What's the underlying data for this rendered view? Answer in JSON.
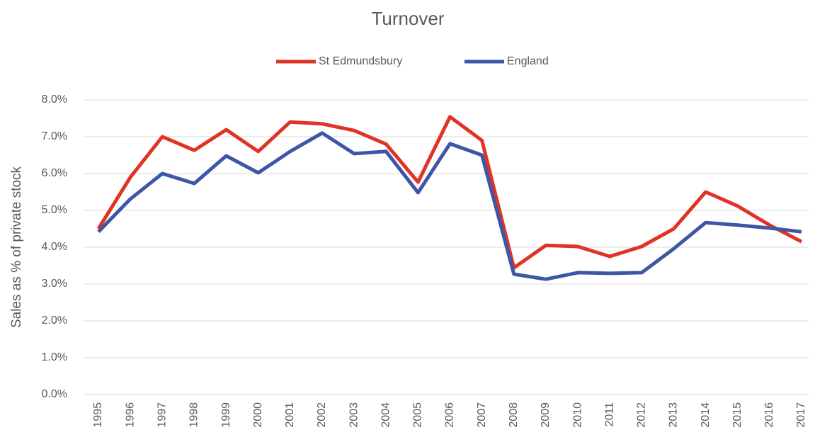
{
  "chart_data": {
    "type": "line",
    "title": "Turnover",
    "y_label": "Sales as % of private stock",
    "categories": [
      "1995",
      "1996",
      "1997",
      "1998",
      "1999",
      "2000",
      "2001",
      "2002",
      "2003",
      "2004",
      "2005",
      "2006",
      "2007",
      "2008",
      "2009",
      "2010",
      "2011",
      "2012",
      "2013",
      "2014",
      "2015",
      "2016",
      "2017"
    ],
    "series": [
      {
        "name": "St Edmundsbury",
        "color": "#e03326",
        "values": [
          4.5,
          5.9,
          7.0,
          6.63,
          7.19,
          6.6,
          7.4,
          7.35,
          7.17,
          6.8,
          5.77,
          7.54,
          6.9,
          3.44,
          4.05,
          4.02,
          3.75,
          4.02,
          4.5,
          5.5,
          5.12,
          4.6,
          4.15
        ]
      },
      {
        "name": "England",
        "color": "#3f55a5",
        "values": [
          4.42,
          5.31,
          6.0,
          5.73,
          6.48,
          6.02,
          6.6,
          7.1,
          6.54,
          6.6,
          5.48,
          6.81,
          6.5,
          3.27,
          3.13,
          3.31,
          3.29,
          3.31,
          3.96,
          4.67,
          4.6,
          4.52,
          4.42
        ]
      }
    ],
    "ylim": [
      0,
      8
    ],
    "yticks": [
      {
        "value": 0,
        "label": "0.0%"
      },
      {
        "value": 1,
        "label": "1.0%"
      },
      {
        "value": 2,
        "label": "2.0%"
      },
      {
        "value": 3,
        "label": "3.0%"
      },
      {
        "value": 4,
        "label": "4.0%"
      },
      {
        "value": 5,
        "label": "5.0%"
      },
      {
        "value": 6,
        "label": "6.0%"
      },
      {
        "value": 7,
        "label": "7.0%"
      },
      {
        "value": 8,
        "label": "8.0%"
      }
    ],
    "grid": true,
    "legend": "top"
  }
}
